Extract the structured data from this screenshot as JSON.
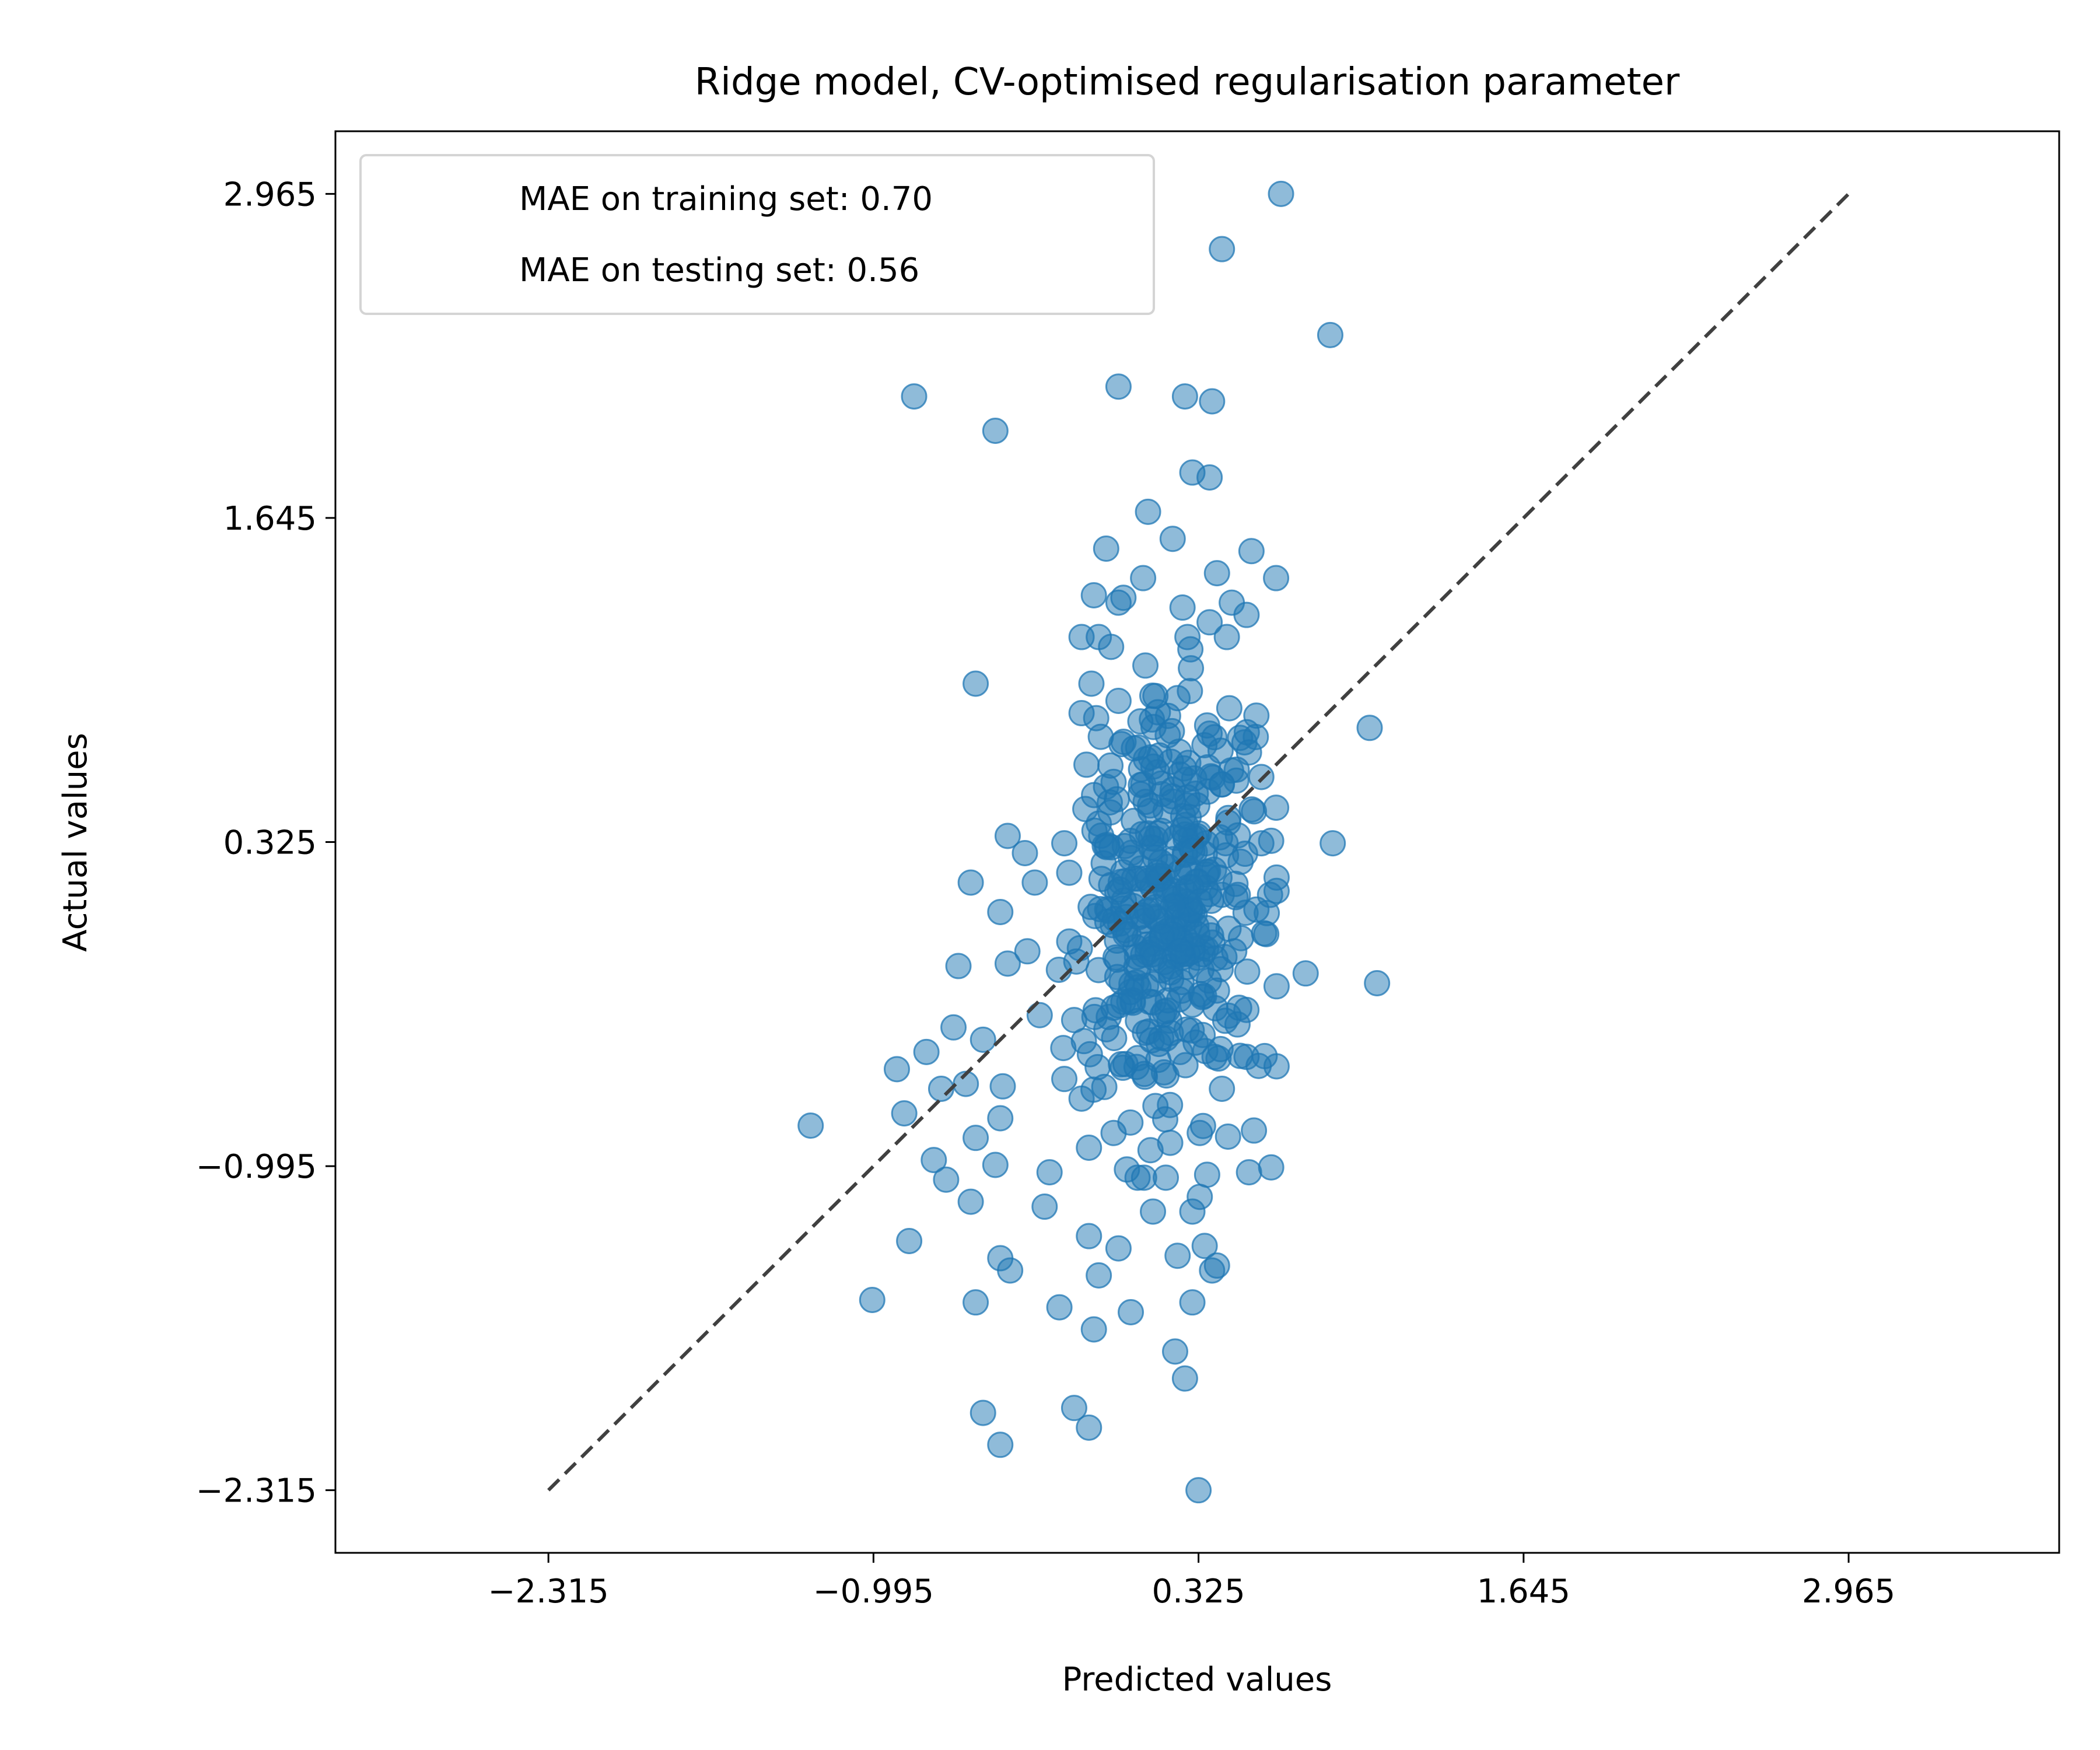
{
  "chart_data": {
    "type": "scatter",
    "title": "Ridge model, CV-optimised regularisation parameter",
    "xlabel": "Predicted values",
    "ylabel": "Actual values",
    "xlim": [
      -3.18,
      3.82
    ],
    "ylim": [
      -2.57,
      3.22
    ],
    "xticks": [
      -2.315,
      -0.995,
      0.325,
      1.645,
      2.965
    ],
    "yticks": [
      -2.315,
      -0.995,
      0.325,
      1.645,
      2.965
    ],
    "xtick_labels": [
      "−2.315",
      "−0.995",
      "0.325",
      "1.645",
      "2.965"
    ],
    "ytick_labels": [
      "−2.315",
      "−0.995",
      "0.325",
      "1.645",
      "2.965"
    ],
    "grid": false,
    "legend": {
      "placement": "top-left",
      "entries": [
        "MAE on training set: 0.70",
        "MAE on testing set: 0.56"
      ]
    },
    "reference_line": {
      "style": "dashed",
      "color": "#404040",
      "from": [
        -2.315,
        -2.315
      ],
      "to": [
        2.965,
        2.965
      ]
    },
    "point_color": "#1f77b4",
    "point_alpha": 0.5,
    "points": [
      [
        0.66,
        2.965
      ],
      [
        0.42,
        2.74
      ],
      [
        0.86,
        2.39
      ],
      [
        -1.0,
        -1.54
      ],
      [
        -0.83,
        2.14
      ],
      [
        0.0,
        2.18
      ],
      [
        0.27,
        2.14
      ],
      [
        0.38,
        2.12
      ],
      [
        -0.5,
        2.0
      ],
      [
        0.3,
        1.83
      ],
      [
        0.37,
        1.81
      ],
      [
        0.12,
        1.67
      ],
      [
        0.22,
        1.56
      ],
      [
        -0.05,
        1.52
      ],
      [
        0.1,
        1.4
      ],
      [
        0.54,
        1.51
      ],
      [
        0.4,
        1.42
      ],
      [
        0.64,
        1.4
      ],
      [
        -0.1,
        1.33
      ],
      [
        0.02,
        1.32
      ],
      [
        0.0,
        1.3
      ],
      [
        0.26,
        1.28
      ],
      [
        0.46,
        1.3
      ],
      [
        0.52,
        1.25
      ],
      [
        -0.15,
        1.16
      ],
      [
        -0.08,
        1.16
      ],
      [
        -0.03,
        1.12
      ],
      [
        0.37,
        1.22
      ],
      [
        0.44,
        1.16
      ],
      [
        0.28,
        1.16
      ],
      [
        -0.58,
        0.97
      ],
      [
        -0.11,
        0.97
      ],
      [
        0.15,
        0.92
      ],
      [
        0.29,
        0.94
      ],
      [
        0.45,
        0.87
      ],
      [
        1.02,
        0.79
      ],
      [
        0.56,
        0.84
      ],
      [
        -0.15,
        0.85
      ],
      [
        0.0,
        0.9
      ],
      [
        0.2,
        0.76
      ],
      [
        0.08,
        0.71
      ],
      [
        0.36,
        0.8
      ],
      [
        0.53,
        0.69
      ],
      [
        0.48,
        0.62
      ],
      [
        -0.13,
        0.64
      ],
      [
        -0.02,
        0.57
      ],
      [
        0.58,
        0.59
      ],
      [
        0.25,
        0.6
      ],
      [
        0.09,
        0.52
      ],
      [
        0.42,
        0.56
      ],
      [
        0.55,
        0.45
      ],
      [
        0.87,
        0.32
      ],
      [
        -0.45,
        0.35
      ],
      [
        -0.38,
        0.28
      ],
      [
        -0.08,
        0.4
      ],
      [
        -0.22,
        0.32
      ],
      [
        0.12,
        0.36
      ],
      [
        0.3,
        0.29
      ],
      [
        0.58,
        0.32
      ],
      [
        0.62,
        0.33
      ],
      [
        0.05,
        0.26
      ],
      [
        -0.6,
        0.16
      ],
      [
        -0.48,
        0.04
      ],
      [
        -0.34,
        0.16
      ],
      [
        -0.2,
        0.2
      ],
      [
        -0.03,
        0.15
      ],
      [
        0.16,
        0.2
      ],
      [
        0.41,
        0.18
      ],
      [
        0.56,
        0.05
      ],
      [
        0.15,
        0.06
      ],
      [
        0.32,
        -0.05
      ],
      [
        0.6,
        -0.05
      ],
      [
        -0.65,
        -0.18
      ],
      [
        -0.45,
        -0.17
      ],
      [
        -0.37,
        -0.12
      ],
      [
        -0.2,
        -0.08
      ],
      [
        0.04,
        -0.05
      ],
      [
        0.25,
        -0.12
      ],
      [
        0.47,
        -0.12
      ],
      [
        0.76,
        -0.21
      ],
      [
        1.05,
        -0.25
      ],
      [
        -0.67,
        -0.43
      ],
      [
        -0.55,
        -0.48
      ],
      [
        -0.32,
        -0.38
      ],
      [
        -0.18,
        -0.4
      ],
      [
        -0.02,
        -0.35
      ],
      [
        0.2,
        -0.32
      ],
      [
        0.4,
        -0.28
      ],
      [
        0.49,
        -0.35
      ],
      [
        -0.78,
        -0.53
      ],
      [
        -0.9,
        -0.6
      ],
      [
        -0.62,
        -0.66
      ],
      [
        -0.47,
        -0.67
      ],
      [
        -0.22,
        -0.64
      ],
      [
        0.01,
        -0.58
      ],
      [
        0.25,
        -0.53
      ],
      [
        0.39,
        -0.55
      ],
      [
        0.52,
        -0.55
      ],
      [
        -0.87,
        -0.78
      ],
      [
        -0.72,
        -0.68
      ],
      [
        -0.48,
        -0.8
      ],
      [
        -0.15,
        -0.72
      ],
      [
        0.15,
        -0.75
      ],
      [
        0.42,
        -0.68
      ],
      [
        -1.25,
        -0.83
      ],
      [
        -0.58,
        -0.88
      ],
      [
        -0.5,
        -0.99
      ],
      [
        -0.12,
        -0.92
      ],
      [
        -0.02,
        -0.86
      ],
      [
        0.21,
        -0.9
      ],
      [
        0.33,
        -0.86
      ],
      [
        0.55,
        -0.85
      ],
      [
        -0.75,
        -0.97
      ],
      [
        -0.7,
        -1.05
      ],
      [
        -0.28,
        -1.02
      ],
      [
        0.13,
        -0.93
      ],
      [
        0.36,
        -1.03
      ],
      [
        0.53,
        -1.02
      ],
      [
        0.62,
        -1.0
      ],
      [
        -0.6,
        -1.14
      ],
      [
        -0.3,
        -1.16
      ],
      [
        0.14,
        -1.18
      ],
      [
        0.3,
        -1.18
      ],
      [
        0.33,
        -1.12
      ],
      [
        -0.85,
        -1.3
      ],
      [
        -0.48,
        -1.37
      ],
      [
        -0.12,
        -1.28
      ],
      [
        0.0,
        -1.33
      ],
      [
        0.35,
        -1.32
      ],
      [
        -0.44,
        -1.42
      ],
      [
        -0.08,
        -1.44
      ],
      [
        0.24,
        -1.36
      ],
      [
        0.38,
        -1.42
      ],
      [
        -0.58,
        -1.55
      ],
      [
        -0.24,
        -1.57
      ],
      [
        0.05,
        -1.59
      ],
      [
        0.4,
        -1.4
      ],
      [
        0.3,
        -1.55
      ],
      [
        -0.1,
        -1.66
      ],
      [
        0.23,
        -1.75
      ],
      [
        0.27,
        -1.86
      ],
      [
        -0.18,
        -1.98
      ],
      [
        -0.12,
        -2.06
      ],
      [
        -0.55,
        -2.0
      ],
      [
        -0.48,
        -2.13
      ],
      [
        0.325,
        -2.315
      ]
    ],
    "cluster": {
      "center": [
        0.2,
        0.05
      ],
      "sd": [
        0.17,
        0.42
      ],
      "count": 340,
      "seed": 7
    }
  }
}
